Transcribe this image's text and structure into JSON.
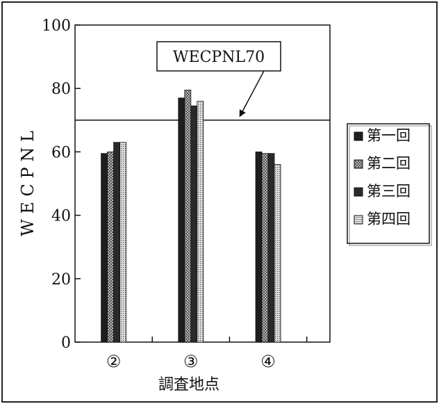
{
  "chart_data": {
    "type": "bar",
    "categories": [
      "②",
      "③",
      "④"
    ],
    "series": [
      {
        "name": "第一回",
        "values": [
          59.5,
          77,
          60
        ],
        "color": "#1e1e1e",
        "pattern": "solid"
      },
      {
        "name": "第二回",
        "values": [
          60,
          79.5,
          59.5
        ],
        "color": "#8c8c8c",
        "pattern": "crosshatch"
      },
      {
        "name": "第三回",
        "values": [
          63,
          74.5,
          59.5
        ],
        "color": "#2a2a2a",
        "pattern": "solid"
      },
      {
        "name": "第四回",
        "values": [
          63,
          76,
          56
        ],
        "color": "#b4b4b4",
        "pattern": "dots"
      }
    ],
    "ylabel": "W E C P N L",
    "xlabel": "調査地点",
    "ylim": [
      0,
      100
    ],
    "yticks": [
      0,
      20,
      40,
      60,
      80,
      100
    ],
    "reference_line": {
      "value": 70,
      "label": "WECPNL70"
    },
    "legend_position": "right",
    "grid": false
  }
}
